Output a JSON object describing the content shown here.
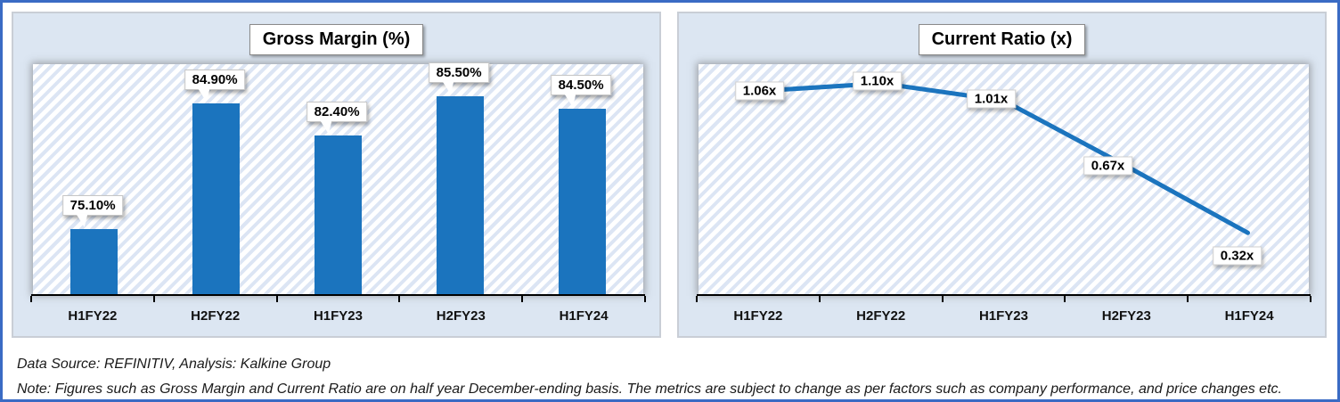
{
  "colors": {
    "accent_blue": "#1B74BE",
    "frame_border_blue": "#3A6BC4",
    "panel_background": "#DCE6F2",
    "stripe_blue": "#DCE5F4"
  },
  "chart_data": [
    {
      "type": "bar",
      "title": "Gross Margin (%)",
      "categories": [
        "H1FY22",
        "H2FY22",
        "H1FY23",
        "H2FY23",
        "H1FY24"
      ],
      "values": [
        75.1,
        84.9,
        82.4,
        85.5,
        84.5
      ],
      "data_labels": [
        "75.10%",
        "84.90%",
        "82.40%",
        "85.50%",
        "84.50%"
      ],
      "ylim": [
        70,
        88
      ],
      "ylabel": "",
      "xlabel": "",
      "grid": false,
      "legend": "none",
      "bar_color": "#1B74BE",
      "plot_pattern": "diagonal-stripes"
    },
    {
      "type": "line",
      "title": "Current Ratio (x)",
      "categories": [
        "H1FY22",
        "H2FY22",
        "H1FY23",
        "H2FY23",
        "H1FY24"
      ],
      "values": [
        1.06,
        1.1,
        1.01,
        0.67,
        0.32
      ],
      "data_labels": [
        "1.06x",
        "1.10x",
        "1.01x",
        "0.67x",
        "0.32x"
      ],
      "ylim": [
        0,
        1.2
      ],
      "ylabel": "",
      "xlabel": "",
      "grid": false,
      "legend": "none",
      "line_color": "#1B74BE",
      "plot_pattern": "diagonal-stripes"
    }
  ],
  "footer": {
    "source_line": "Data Source: REFINITIV, Analysis: Kalkine Group",
    "note_line": "Note: Figures such as Gross Margin and Current Ratio are on half year December-ending basis. The metrics are subject to change as per factors such as company performance, and price changes etc."
  }
}
